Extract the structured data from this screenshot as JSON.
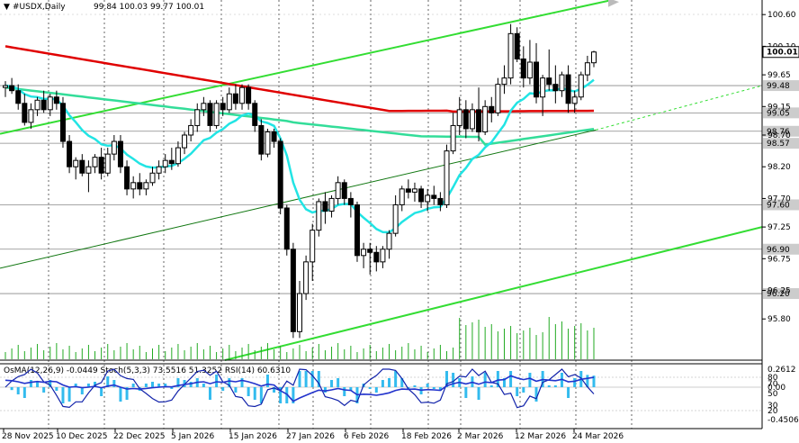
{
  "chart_data": {
    "type": "candlestick",
    "header": {
      "symbol": "#USDX,Daily",
      "ohlc_text": "99.84 100.03 99.77 100.01"
    },
    "price_axis": {
      "min": 95.15,
      "max": 100.83,
      "ticks": [
        "100.60",
        "100.10",
        "99.65",
        "99.15",
        "98.70",
        "98.20",
        "97.70",
        "97.25",
        "96.75",
        "96.25",
        "95.80"
      ],
      "tick_values": [
        100.6,
        100.1,
        99.65,
        99.15,
        98.7,
        98.2,
        97.7,
        97.25,
        96.75,
        96.25,
        95.8
      ],
      "current_price": "100.01"
    },
    "levels": [
      {
        "value": 99.48,
        "label": "99.48"
      },
      {
        "value": 99.05,
        "label": "99.05"
      },
      {
        "value": 98.76,
        "label": "98.76"
      },
      {
        "value": 98.57,
        "label": "98.57"
      },
      {
        "value": 97.6,
        "label": "97.60"
      },
      {
        "value": 96.9,
        "label": "96.90"
      },
      {
        "value": 96.2,
        "label": "96.20"
      }
    ],
    "date_axis": [
      "28 Nov 2025",
      "10 Dec 2025",
      "22 Dec 2025",
      "5 Jan 2026",
      "15 Jan 2026",
      "27 Jan 2026",
      "6 Feb 2026",
      "18 Feb 2026",
      "2 Mar 2026",
      "12 Mar 2026",
      "24 Mar 2026"
    ],
    "candles": [
      [
        99.45,
        99.55,
        99.3,
        99.48
      ],
      [
        99.48,
        99.6,
        99.35,
        99.4
      ],
      [
        99.4,
        99.5,
        99.1,
        99.2
      ],
      [
        99.2,
        99.35,
        98.85,
        98.9
      ],
      [
        98.9,
        99.2,
        98.8,
        99.1
      ],
      [
        99.1,
        99.3,
        99.0,
        99.25
      ],
      [
        99.25,
        99.4,
        99.05,
        99.1
      ],
      [
        99.1,
        99.35,
        99.0,
        99.3
      ],
      [
        99.3,
        99.4,
        99.1,
        99.2
      ],
      [
        99.2,
        99.3,
        98.5,
        98.6
      ],
      [
        98.6,
        98.7,
        98.1,
        98.2
      ],
      [
        98.2,
        98.35,
        98.0,
        98.3
      ],
      [
        98.3,
        98.4,
        98.05,
        98.1
      ],
      [
        98.1,
        98.3,
        97.8,
        98.2
      ],
      [
        98.2,
        98.4,
        98.1,
        98.35
      ],
      [
        98.35,
        98.5,
        98.0,
        98.1
      ],
      [
        98.1,
        98.5,
        98.05,
        98.4
      ],
      [
        98.4,
        98.7,
        98.3,
        98.6
      ],
      [
        98.6,
        98.7,
        98.1,
        98.2
      ],
      [
        98.2,
        98.3,
        97.75,
        97.85
      ],
      [
        97.85,
        98.05,
        97.7,
        97.95
      ],
      [
        97.95,
        98.1,
        97.75,
        97.85
      ],
      [
        97.85,
        98.0,
        97.75,
        97.95
      ],
      [
        97.95,
        98.2,
        97.9,
        98.1
      ],
      [
        98.1,
        98.3,
        98.0,
        98.2
      ],
      [
        98.2,
        98.4,
        98.1,
        98.3
      ],
      [
        98.3,
        98.5,
        98.15,
        98.25
      ],
      [
        98.25,
        98.6,
        98.2,
        98.5
      ],
      [
        98.5,
        98.75,
        98.4,
        98.7
      ],
      [
        98.7,
        98.95,
        98.6,
        98.85
      ],
      [
        98.85,
        99.2,
        98.75,
        99.1
      ],
      [
        99.1,
        99.3,
        99.0,
        99.2
      ],
      [
        99.2,
        99.25,
        98.75,
        98.85
      ],
      [
        98.85,
        99.25,
        98.8,
        99.2
      ],
      [
        99.2,
        99.3,
        99.0,
        99.1
      ],
      [
        99.1,
        99.45,
        99.05,
        99.35
      ],
      [
        99.35,
        99.5,
        99.1,
        99.2
      ],
      [
        99.2,
        99.5,
        99.1,
        99.45
      ],
      [
        99.45,
        99.5,
        99.1,
        99.2
      ],
      [
        99.2,
        99.25,
        98.75,
        98.85
      ],
      [
        98.85,
        98.95,
        98.3,
        98.4
      ],
      [
        98.4,
        98.8,
        98.35,
        98.75
      ],
      [
        98.75,
        98.8,
        98.5,
        98.6
      ],
      [
        98.6,
        98.65,
        97.45,
        97.55
      ],
      [
        97.55,
        97.6,
        96.8,
        96.9
      ],
      [
        96.9,
        97.0,
        95.5,
        95.6
      ],
      [
        95.6,
        96.4,
        95.5,
        96.2
      ],
      [
        96.2,
        96.8,
        96.1,
        96.7
      ],
      [
        96.7,
        97.3,
        96.4,
        97.2
      ],
      [
        97.2,
        97.7,
        97.1,
        97.65
      ],
      [
        97.65,
        97.8,
        97.3,
        97.5
      ],
      [
        97.5,
        97.75,
        97.4,
        97.7
      ],
      [
        97.7,
        98.05,
        97.6,
        97.95
      ],
      [
        97.95,
        98.0,
        97.6,
        97.7
      ],
      [
        97.7,
        97.8,
        97.4,
        97.6
      ],
      [
        97.6,
        97.65,
        96.7,
        96.8
      ],
      [
        96.8,
        97.0,
        96.6,
        96.9
      ],
      [
        96.9,
        97.0,
        96.5,
        96.85
      ],
      [
        96.85,
        96.95,
        96.55,
        96.7
      ],
      [
        96.7,
        96.95,
        96.6,
        96.9
      ],
      [
        96.9,
        97.2,
        96.75,
        97.15
      ],
      [
        97.15,
        97.75,
        97.1,
        97.6
      ],
      [
        97.6,
        97.9,
        97.5,
        97.85
      ],
      [
        97.85,
        98.0,
        97.7,
        97.8
      ],
      [
        97.8,
        97.95,
        97.65,
        97.85
      ],
      [
        97.85,
        97.9,
        97.55,
        97.65
      ],
      [
        97.65,
        97.85,
        97.5,
        97.75
      ],
      [
        97.75,
        97.9,
        97.6,
        97.7
      ],
      [
        97.7,
        97.8,
        97.5,
        97.6
      ],
      [
        97.6,
        98.55,
        97.55,
        98.45
      ],
      [
        98.45,
        99.05,
        98.4,
        98.85
      ],
      [
        98.85,
        99.3,
        98.7,
        99.1
      ],
      [
        99.1,
        99.25,
        98.65,
        98.8
      ],
      [
        98.8,
        99.2,
        98.75,
        99.1
      ],
      [
        99.1,
        99.45,
        98.6,
        98.75
      ],
      [
        98.75,
        99.25,
        98.7,
        99.15
      ],
      [
        99.15,
        99.3,
        98.9,
        99.05
      ],
      [
        99.05,
        99.6,
        99.0,
        99.5
      ],
      [
        99.5,
        99.8,
        99.35,
        99.6
      ],
      [
        99.6,
        100.45,
        99.5,
        100.3
      ],
      [
        100.3,
        100.4,
        99.85,
        99.9
      ],
      [
        99.9,
        100.1,
        99.45,
        99.6
      ],
      [
        99.6,
        100.2,
        99.5,
        99.85
      ],
      [
        99.85,
        100.15,
        99.2,
        99.3
      ],
      [
        99.3,
        99.65,
        99.0,
        99.6
      ],
      [
        99.6,
        100.05,
        99.4,
        99.5
      ],
      [
        99.5,
        99.8,
        99.2,
        99.4
      ],
      [
        99.4,
        99.7,
        99.3,
        99.65
      ],
      [
        99.65,
        99.8,
        99.05,
        99.2
      ],
      [
        99.2,
        99.4,
        99.05,
        99.3
      ],
      [
        99.3,
        99.7,
        99.25,
        99.65
      ],
      [
        99.65,
        99.95,
        99.55,
        99.84
      ],
      [
        99.84,
        100.03,
        99.77,
        100.01
      ]
    ],
    "oscillator_panel": {
      "label": "OsMA(12,26,9) -0.0449  Stoch(5,3,3) 73.5516 51.3252  RSI(14) 60.6310",
      "scale_labels": [
        "0.2612",
        "80",
        "70",
        "0.00",
        "50",
        "30",
        "20",
        "-0.4506"
      ]
    },
    "colors": {
      "bull_candle": "#ffffff",
      "bear_candle": "#000000",
      "ma_red": "#e00000",
      "ma_aqua": "#22e4e4",
      "ma_green": "#33dd99",
      "channel": "#33dd33",
      "osma": "#33bbee",
      "stoch_main": "#1122aa",
      "rsi": "#2233cc"
    }
  }
}
